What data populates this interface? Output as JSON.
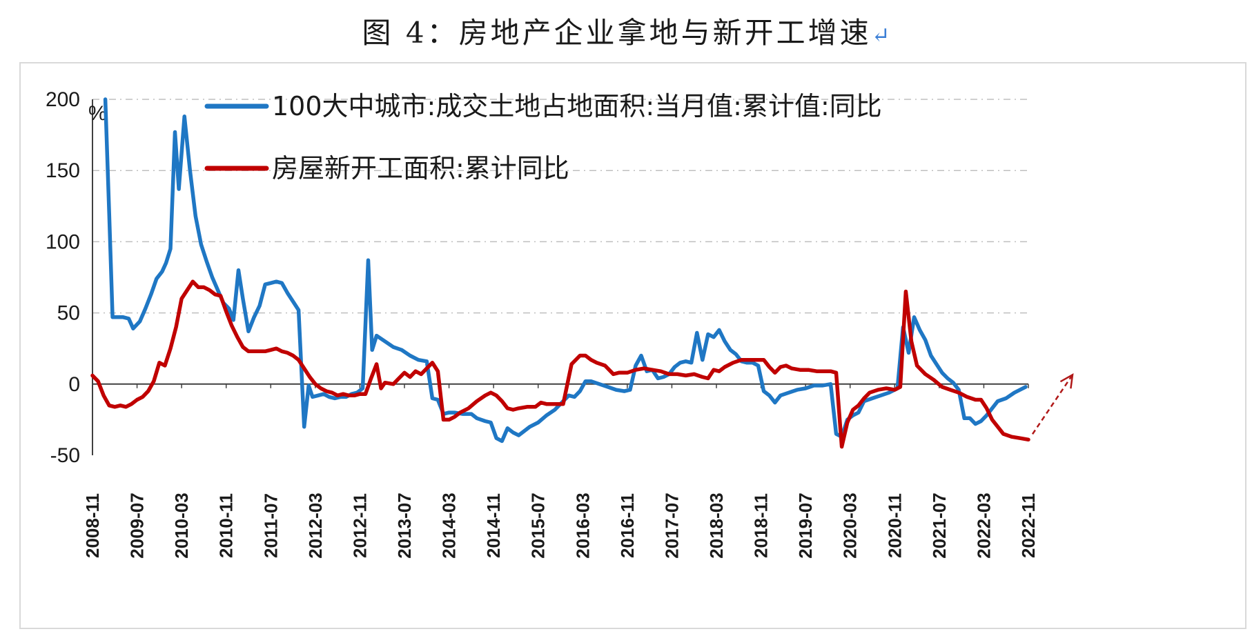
{
  "figure": {
    "title": "图 4：房地产企业拿地与新开工增速",
    "title_mark": "↵"
  },
  "colors": {
    "land": "#1f77c4",
    "starts": "#c00000",
    "grid": "#bfbfbf",
    "axis": "#404040"
  },
  "chart_data": {
    "type": "line",
    "title": "",
    "ylabel": "%",
    "ylim": [
      -50,
      200
    ],
    "yticks": [
      -50,
      0,
      50,
      100,
      150,
      200
    ],
    "xlim": [
      0,
      168
    ],
    "xticks": [
      {
        "label": "2008-11",
        "i": 0
      },
      {
        "label": "2009-07",
        "i": 8
      },
      {
        "label": "2010-03",
        "i": 16
      },
      {
        "label": "2010-11",
        "i": 24
      },
      {
        "label": "2011-07",
        "i": 32
      },
      {
        "label": "2012-03",
        "i": 40
      },
      {
        "label": "2012-11",
        "i": 48
      },
      {
        "label": "2013-07",
        "i": 56
      },
      {
        "label": "2014-03",
        "i": 64
      },
      {
        "label": "2014-11",
        "i": 72
      },
      {
        "label": "2015-07",
        "i": 80
      },
      {
        "label": "2016-03",
        "i": 88
      },
      {
        "label": "2016-11",
        "i": 96
      },
      {
        "label": "2017-07",
        "i": 104
      },
      {
        "label": "2018-03",
        "i": 112
      },
      {
        "label": "2018-11",
        "i": 120
      },
      {
        "label": "2019-07",
        "i": 128
      },
      {
        "label": "2020-03",
        "i": 136
      },
      {
        "label": "2020-11",
        "i": 144
      },
      {
        "label": "2021-07",
        "i": 152
      },
      {
        "label": "2022-03",
        "i": 160
      },
      {
        "label": "2022-11",
        "i": 168
      }
    ],
    "x_note": "i = months since 2008-11",
    "series": [
      {
        "name": "100大中城市:成交土地占地面积:当月值:累计值:同比",
        "color": "#1f77c4",
        "points": [
          [
            2.3,
            200
          ],
          [
            3.0,
            120
          ],
          [
            3.6,
            47
          ],
          [
            4.5,
            47
          ],
          [
            5.5,
            47
          ],
          [
            6.5,
            46
          ],
          [
            7.3,
            39
          ],
          [
            8.5,
            44
          ],
          [
            9.5,
            53
          ],
          [
            10.5,
            63
          ],
          [
            11.5,
            74
          ],
          [
            12.5,
            79
          ],
          [
            13.2,
            85
          ],
          [
            14.0,
            95
          ],
          [
            14.8,
            177
          ],
          [
            15.5,
            137
          ],
          [
            16.5,
            188
          ],
          [
            17.5,
            150
          ],
          [
            18.5,
            118
          ],
          [
            19.5,
            98
          ],
          [
            20.5,
            86
          ],
          [
            21.5,
            75
          ],
          [
            22.5,
            66
          ],
          [
            23.5,
            57
          ],
          [
            24.5,
            53
          ],
          [
            25.3,
            45
          ],
          [
            26.2,
            80
          ],
          [
            27.0,
            60
          ],
          [
            28.0,
            37
          ],
          [
            29.0,
            47
          ],
          [
            30.0,
            55
          ],
          [
            31.0,
            70
          ],
          [
            32.0,
            71
          ],
          [
            33.0,
            72
          ],
          [
            34.0,
            71
          ],
          [
            35.0,
            64
          ],
          [
            36.0,
            58
          ],
          [
            37.0,
            52
          ],
          [
            38.0,
            -30
          ],
          [
            38.8,
            -1
          ],
          [
            39.5,
            -9
          ],
          [
            40.5,
            -8
          ],
          [
            41.5,
            -7
          ],
          [
            42.5,
            -9
          ],
          [
            43.5,
            -10
          ],
          [
            44.5,
            -9
          ],
          [
            45.5,
            -9
          ],
          [
            46.5,
            -7
          ],
          [
            47.5,
            -6
          ],
          [
            48.5,
            -3
          ],
          [
            49.5,
            87
          ],
          [
            50.2,
            24
          ],
          [
            51.0,
            34
          ],
          [
            52.5,
            30
          ],
          [
            54.0,
            26
          ],
          [
            55.5,
            24
          ],
          [
            57.0,
            20
          ],
          [
            58.5,
            17
          ],
          [
            60.0,
            16
          ],
          [
            61.0,
            -10
          ],
          [
            62.0,
            -11
          ],
          [
            63.0,
            -21
          ],
          [
            64.0,
            -20
          ],
          [
            65.0,
            -20
          ],
          [
            66.5,
            -21
          ],
          [
            68.0,
            -21
          ],
          [
            69.0,
            -24
          ],
          [
            70.5,
            -26
          ],
          [
            71.5,
            -27
          ],
          [
            72.5,
            -38
          ],
          [
            73.5,
            -40
          ],
          [
            74.5,
            -31
          ],
          [
            75.5,
            -34
          ],
          [
            76.5,
            -36
          ],
          [
            77.5,
            -33
          ],
          [
            78.5,
            -30
          ],
          [
            80.0,
            -27
          ],
          [
            81.5,
            -22
          ],
          [
            83.0,
            -18
          ],
          [
            84.5,
            -12
          ],
          [
            85.5,
            -8
          ],
          [
            86.5,
            -9
          ],
          [
            87.5,
            -5
          ],
          [
            88.5,
            2
          ],
          [
            89.5,
            2
          ],
          [
            91.0,
            0
          ],
          [
            92.5,
            -2
          ],
          [
            94.0,
            -4
          ],
          [
            95.5,
            -5
          ],
          [
            96.5,
            -4
          ],
          [
            97.5,
            13
          ],
          [
            98.5,
            20
          ],
          [
            99.5,
            9
          ],
          [
            100.5,
            10
          ],
          [
            101.5,
            4
          ],
          [
            102.5,
            5
          ],
          [
            103.5,
            7
          ],
          [
            104.5,
            12
          ],
          [
            105.5,
            15
          ],
          [
            106.5,
            16
          ],
          [
            107.5,
            15
          ],
          [
            108.5,
            36
          ],
          [
            109.5,
            17
          ],
          [
            110.5,
            35
          ],
          [
            111.5,
            33
          ],
          [
            112.5,
            38
          ],
          [
            113.5,
            30
          ],
          [
            114.5,
            24
          ],
          [
            115.5,
            21
          ],
          [
            116.5,
            16
          ],
          [
            117.5,
            15
          ],
          [
            118.5,
            15
          ],
          [
            119.5,
            13
          ],
          [
            120.5,
            -5
          ],
          [
            121.5,
            -8
          ],
          [
            122.5,
            -13
          ],
          [
            123.5,
            -8
          ],
          [
            125.0,
            -6
          ],
          [
            126.5,
            -4
          ],
          [
            128.0,
            -3
          ],
          [
            129.5,
            -1
          ],
          [
            131.0,
            -1
          ],
          [
            132.5,
            0
          ],
          [
            133.5,
            -35
          ],
          [
            134.5,
            -37
          ],
          [
            135.5,
            -25
          ],
          [
            136.5,
            -22
          ],
          [
            137.5,
            -20
          ],
          [
            138.5,
            -12
          ],
          [
            140.0,
            -10
          ],
          [
            141.5,
            -8
          ],
          [
            143.0,
            -6
          ],
          [
            144.5,
            -3
          ],
          [
            145.5,
            40
          ],
          [
            146.5,
            22
          ],
          [
            147.5,
            47
          ],
          [
            148.5,
            38
          ],
          [
            149.5,
            31
          ],
          [
            150.5,
            20
          ],
          [
            151.5,
            14
          ],
          [
            152.5,
            8
          ],
          [
            153.5,
            4
          ],
          [
            154.5,
            1
          ],
          [
            155.5,
            -4
          ],
          [
            156.5,
            -24
          ],
          [
            157.5,
            -24
          ],
          [
            158.5,
            -28
          ],
          [
            159.5,
            -26
          ],
          [
            160.5,
            -22
          ],
          [
            161.5,
            -17
          ],
          [
            162.5,
            -12
          ],
          [
            164.0,
            -10
          ],
          [
            165.5,
            -6
          ],
          [
            166.5,
            -4
          ],
          [
            167.5,
            -2
          ]
        ]
      },
      {
        "name": "房屋新开工面积:累计同比",
        "color": "#c00000",
        "points": [
          [
            0.0,
            6
          ],
          [
            1.0,
            2
          ],
          [
            2.0,
            -8
          ],
          [
            3.0,
            -15
          ],
          [
            4.0,
            -16
          ],
          [
            5.0,
            -15
          ],
          [
            6.0,
            -16
          ],
          [
            7.0,
            -14
          ],
          [
            8.0,
            -11
          ],
          [
            9.0,
            -9
          ],
          [
            10.0,
            -5
          ],
          [
            11.0,
            2
          ],
          [
            12.0,
            15
          ],
          [
            13.0,
            13
          ],
          [
            14.0,
            25
          ],
          [
            15.0,
            40
          ],
          [
            16.0,
            60
          ],
          [
            17.0,
            66
          ],
          [
            18.0,
            72
          ],
          [
            19.0,
            68
          ],
          [
            20.0,
            68
          ],
          [
            21.0,
            66
          ],
          [
            22.0,
            63
          ],
          [
            23.0,
            62
          ],
          [
            24.0,
            51
          ],
          [
            25.0,
            41
          ],
          [
            26.0,
            33
          ],
          [
            27.0,
            26
          ],
          [
            28.0,
            23
          ],
          [
            29.0,
            23
          ],
          [
            30.0,
            23
          ],
          [
            31.0,
            23
          ],
          [
            32.0,
            24
          ],
          [
            33.0,
            25
          ],
          [
            34.0,
            23
          ],
          [
            35.0,
            22
          ],
          [
            36.0,
            20
          ],
          [
            37.0,
            17
          ],
          [
            38.0,
            11
          ],
          [
            39.0,
            5
          ],
          [
            40.0,
            0
          ],
          [
            41.0,
            -3
          ],
          [
            42.0,
            -5
          ],
          [
            43.0,
            -6
          ],
          [
            44.0,
            -8
          ],
          [
            45.0,
            -7
          ],
          [
            46.0,
            -8
          ],
          [
            47.0,
            -8
          ],
          [
            48.0,
            -7
          ],
          [
            49.0,
            -7
          ],
          [
            50.0,
            4
          ],
          [
            51.0,
            14
          ],
          [
            51.8,
            -3
          ],
          [
            52.5,
            1
          ],
          [
            54.0,
            0
          ],
          [
            55.0,
            4
          ],
          [
            56.0,
            8
          ],
          [
            57.0,
            5
          ],
          [
            58.0,
            9
          ],
          [
            59.0,
            7
          ],
          [
            60.0,
            11
          ],
          [
            61.0,
            15
          ],
          [
            62.0,
            9
          ],
          [
            63.0,
            -25
          ],
          [
            64.0,
            -25
          ],
          [
            65.0,
            -23
          ],
          [
            66.0,
            -20
          ],
          [
            67.5,
            -17
          ],
          [
            69.0,
            -12
          ],
          [
            70.5,
            -8
          ],
          [
            71.5,
            -6
          ],
          [
            72.5,
            -8
          ],
          [
            73.5,
            -12
          ],
          [
            74.5,
            -17
          ],
          [
            75.5,
            -18
          ],
          [
            76.5,
            -17
          ],
          [
            78.0,
            -16
          ],
          [
            79.5,
            -16
          ],
          [
            80.5,
            -13
          ],
          [
            81.5,
            -14
          ],
          [
            83.0,
            -14
          ],
          [
            84.5,
            -14
          ],
          [
            86.0,
            14
          ],
          [
            87.5,
            20
          ],
          [
            88.5,
            20
          ],
          [
            89.5,
            17
          ],
          [
            90.5,
            15
          ],
          [
            92.0,
            13
          ],
          [
            93.5,
            7
          ],
          [
            94.5,
            8
          ],
          [
            96.0,
            8
          ],
          [
            97.5,
            10
          ],
          [
            99.0,
            11
          ],
          [
            100.5,
            10
          ],
          [
            102.0,
            9
          ],
          [
            103.5,
            7
          ],
          [
            105.0,
            7
          ],
          [
            106.5,
            6
          ],
          [
            108.0,
            7
          ],
          [
            109.5,
            5
          ],
          [
            110.5,
            4
          ],
          [
            111.5,
            10
          ],
          [
            112.5,
            9
          ],
          [
            113.5,
            12
          ],
          [
            115.0,
            15
          ],
          [
            116.5,
            17
          ],
          [
            118.0,
            17
          ],
          [
            119.5,
            17
          ],
          [
            120.5,
            17
          ],
          [
            121.5,
            12
          ],
          [
            122.5,
            8
          ],
          [
            123.5,
            12
          ],
          [
            124.5,
            13
          ],
          [
            125.5,
            11
          ],
          [
            127.0,
            10
          ],
          [
            128.5,
            10
          ],
          [
            130.0,
            9
          ],
          [
            131.0,
            9
          ],
          [
            132.5,
            9
          ],
          [
            133.5,
            8
          ],
          [
            134.5,
            -44
          ],
          [
            135.5,
            -27
          ],
          [
            136.5,
            -18
          ],
          [
            137.5,
            -15
          ],
          [
            138.5,
            -10
          ],
          [
            139.5,
            -6
          ],
          [
            141.0,
            -4
          ],
          [
            142.5,
            -3
          ],
          [
            144.0,
            -4
          ],
          [
            145.0,
            -2
          ],
          [
            146.0,
            65
          ],
          [
            147.0,
            30
          ],
          [
            148.0,
            13
          ],
          [
            149.5,
            7
          ],
          [
            151.0,
            3
          ],
          [
            152.5,
            -2
          ],
          [
            154.0,
            -4
          ],
          [
            155.5,
            -6
          ],
          [
            157.0,
            -9
          ],
          [
            158.5,
            -11
          ],
          [
            159.5,
            -11
          ],
          [
            160.5,
            -17
          ],
          [
            161.5,
            -25
          ],
          [
            162.5,
            -30
          ],
          [
            163.5,
            -35
          ],
          [
            165.0,
            -37
          ],
          [
            166.5,
            -38
          ],
          [
            168.0,
            -39
          ]
        ]
      }
    ],
    "annotation": "dashed trend arrow from series end pointing up-right"
  }
}
